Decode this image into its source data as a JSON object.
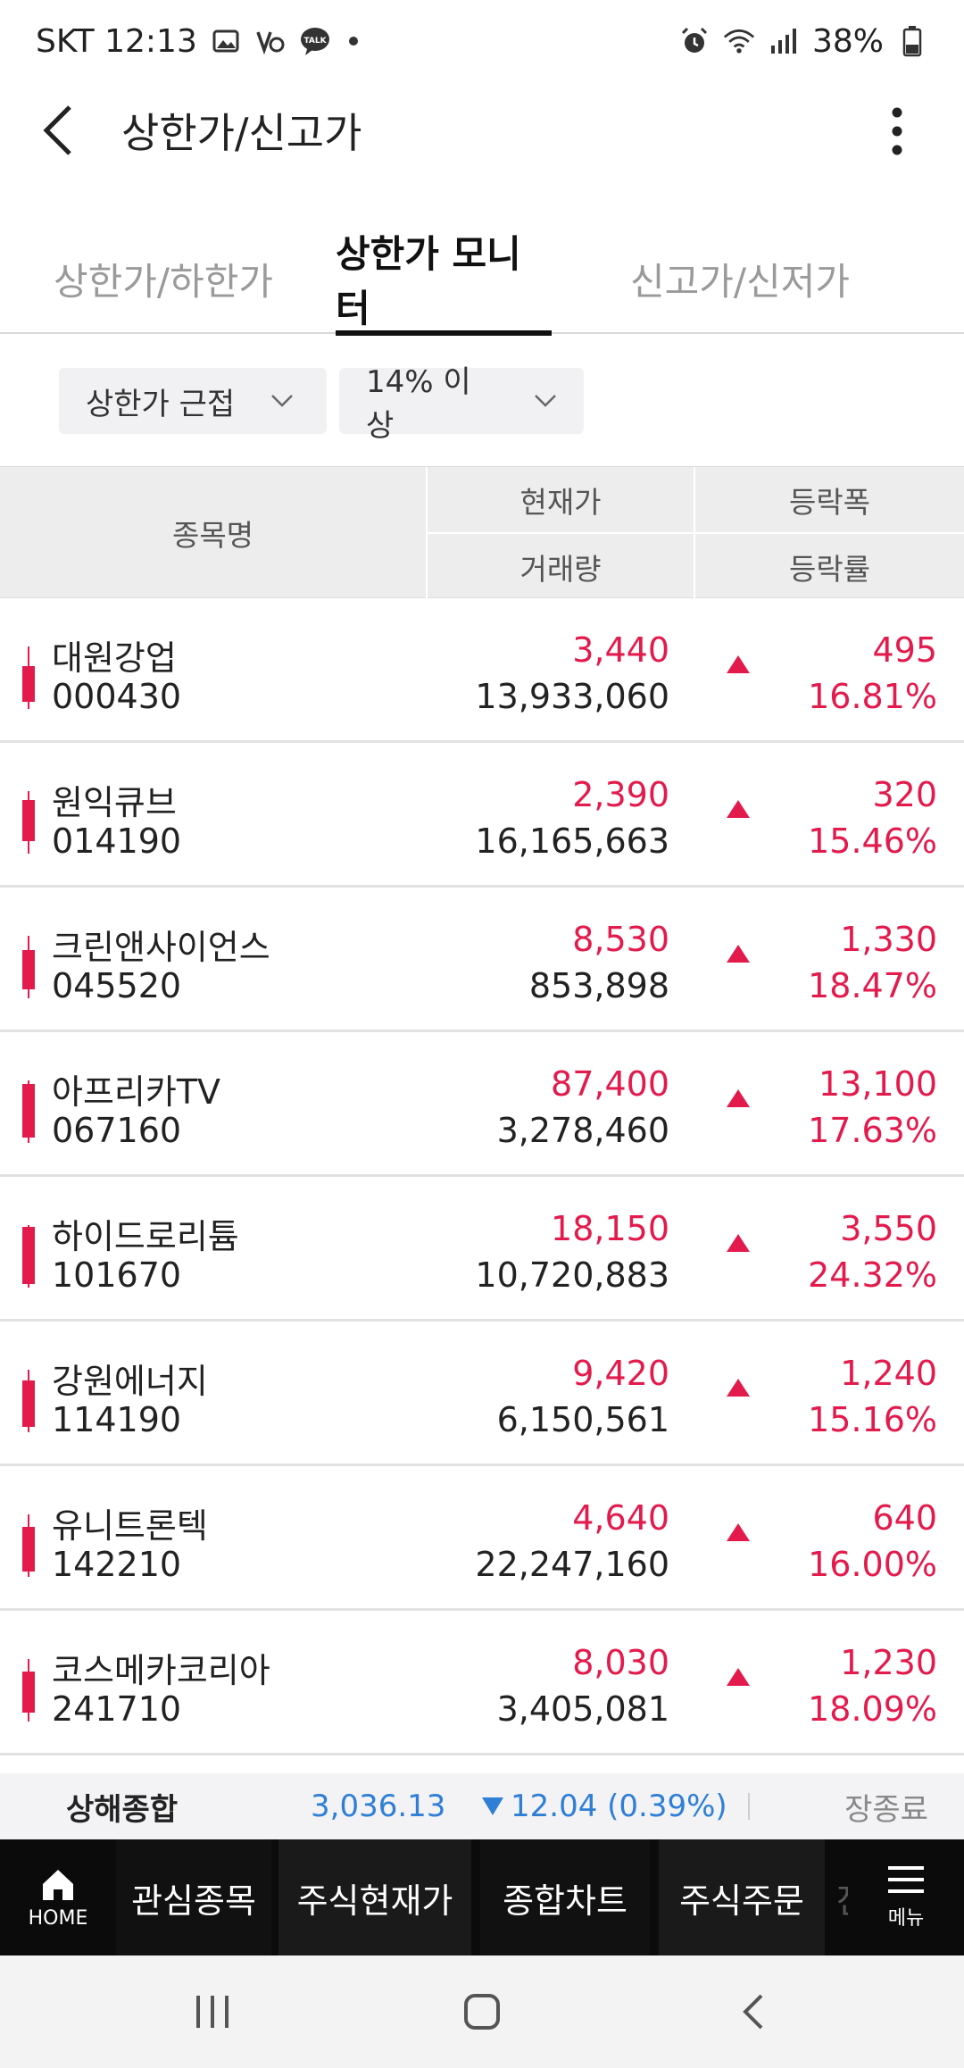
{
  "status_bar": {
    "carrier_time": "SKT 12:13",
    "battery": "38%",
    "left_icons": [
      "gallery-icon",
      "vpn-key-icon",
      "talk-icon"
    ],
    "right_icons": [
      "alarm-icon",
      "wifi-icon",
      "signal-icon",
      "battery-icon"
    ]
  },
  "header": {
    "title": "상한가/신고가"
  },
  "tabs": [
    {
      "label": "상한가/하한가",
      "active": false
    },
    {
      "label": "상한가 모니터",
      "active": true
    },
    {
      "label": "신고가/신저가",
      "active": false
    }
  ],
  "filters": [
    {
      "label": "상한가 근접"
    },
    {
      "label": "14% 이상"
    }
  ],
  "table": {
    "columns": {
      "name": "종목명",
      "price": "현재가",
      "volume": "거래량",
      "change": "등락폭",
      "rate": "등락률"
    },
    "rows": [
      {
        "name": "대원강업",
        "code": "000430",
        "price": "3,440",
        "volume": "13,933,060",
        "change": "495",
        "rate": "16.81%"
      },
      {
        "name": "원익큐브",
        "code": "014190",
        "price": "2,390",
        "volume": "16,165,663",
        "change": "320",
        "rate": "15.46%"
      },
      {
        "name": "크린앤사이언스",
        "code": "045520",
        "price": "8,530",
        "volume": "853,898",
        "change": "1,330",
        "rate": "18.47%"
      },
      {
        "name": "아프리카TV",
        "code": "067160",
        "price": "87,400",
        "volume": "3,278,460",
        "change": "13,100",
        "rate": "17.63%"
      },
      {
        "name": "하이드로리튬",
        "code": "101670",
        "price": "18,150",
        "volume": "10,720,883",
        "change": "3,550",
        "rate": "24.32%"
      },
      {
        "name": "강원에너지",
        "code": "114190",
        "price": "9,420",
        "volume": "6,150,561",
        "change": "1,240",
        "rate": "15.16%"
      },
      {
        "name": "유니트론텍",
        "code": "142210",
        "price": "4,640",
        "volume": "22,247,160",
        "change": "640",
        "rate": "16.00%"
      },
      {
        "name": "코스메카코리아",
        "code": "241710",
        "price": "8,030",
        "volume": "3,405,081",
        "change": "1,230",
        "rate": "18.09%"
      }
    ]
  },
  "ticker": {
    "index_name": "상해종합",
    "value": "3,036.13",
    "change": "12.04 (0.39%)",
    "status": "장종료"
  },
  "bottom_nav": {
    "home_label": "HOME",
    "items": [
      "관심종목",
      "주식현재가",
      "종합차트",
      "주식주문",
      "진"
    ],
    "menu_label": "메뉴"
  },
  "colors": {
    "up_red": "#e31b4d",
    "down_blue": "#2f7fd6",
    "nav_bg": "#0b0b0b",
    "header_bg": "#ededee"
  }
}
